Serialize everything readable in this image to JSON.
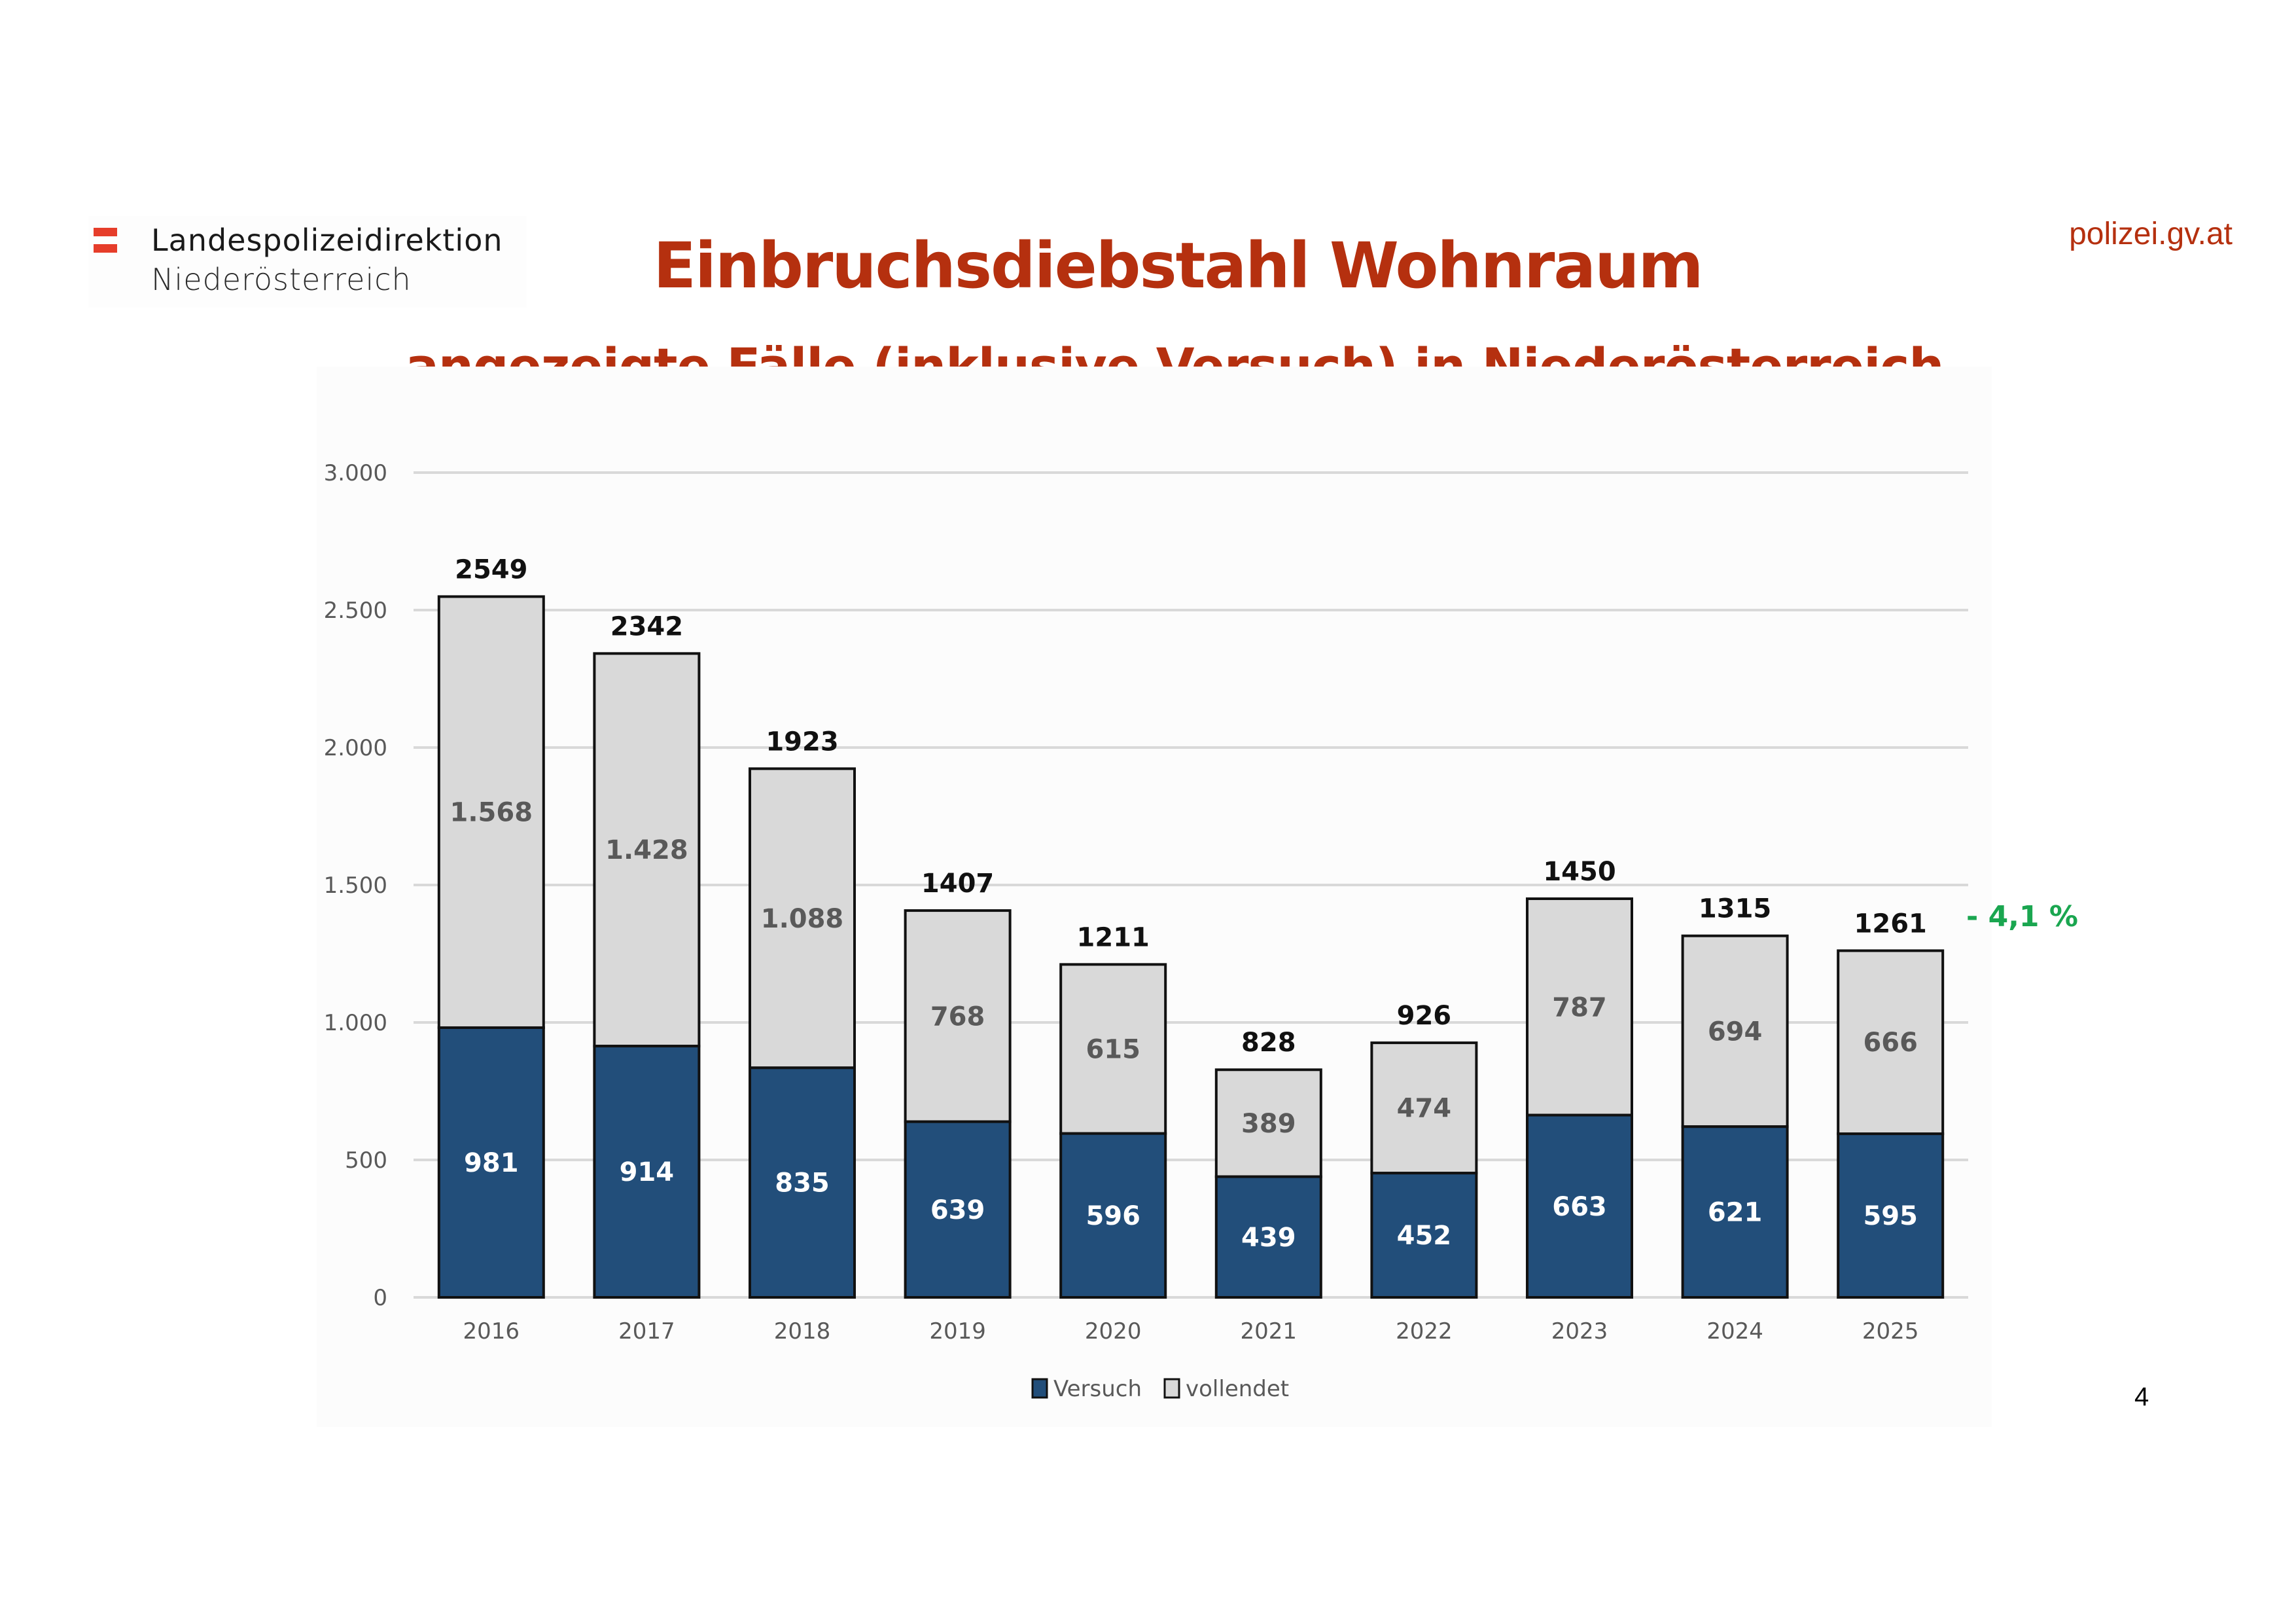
{
  "header": {
    "org_line1": "Landespolizeidirektion",
    "org_line2": "Niederösterreich",
    "website": "polizei.gv.at",
    "title": "Einbruchsdiebstahl Wohnraum",
    "subtitle": "angezeigte Fälle (inklusive Versuch) in Niederösterreich"
  },
  "page_number": "4",
  "annotation": "- 4,1 %",
  "colors": {
    "brand_red": "#b5300f",
    "flag_red": "#e63d2a",
    "versuch": "#224e7a",
    "vollendet": "#d9d9d9",
    "change_green": "#1aa650"
  },
  "chart_data": {
    "type": "bar",
    "stacked": true,
    "title": "Einbruchsdiebstahl Wohnraum",
    "subtitle": "angezeigte Fälle (inklusive Versuch) in Niederösterreich",
    "xlabel": "",
    "ylabel": "",
    "categories": [
      "2016",
      "2017",
      "2018",
      "2019",
      "2020",
      "2021",
      "2022",
      "2023",
      "2024",
      "2025"
    ],
    "series": [
      {
        "name": "Versuch",
        "values": [
          981,
          914,
          835,
          639,
          596,
          439,
          452,
          663,
          621,
          595
        ],
        "labels": [
          "981",
          "914",
          "835",
          "639",
          "596",
          "439",
          "452",
          "663",
          "621",
          "595"
        ]
      },
      {
        "name": "vollendet",
        "values": [
          1568,
          1428,
          1088,
          768,
          615,
          389,
          474,
          787,
          694,
          666
        ],
        "labels": [
          "1.568",
          "1.428",
          "1.088",
          "768",
          "615",
          "389",
          "474",
          "787",
          "694",
          "666"
        ]
      }
    ],
    "totals": [
      2549,
      2342,
      1923,
      1407,
      1211,
      828,
      926,
      1450,
      1315,
      1261
    ],
    "ylim": [
      0,
      3000
    ],
    "yticks": [
      0,
      500,
      1000,
      1500,
      2000,
      2500,
      3000
    ],
    "ytick_labels": [
      "0",
      "500",
      "1.000",
      "1.500",
      "2.000",
      "2.500",
      "3.000"
    ],
    "grid": true,
    "legend": {
      "placement": "bottom-center",
      "entries": [
        "Versuch",
        "vollendet"
      ]
    },
    "annotations": [
      {
        "text": "- 4,1 %",
        "anchor": "2025"
      }
    ]
  }
}
